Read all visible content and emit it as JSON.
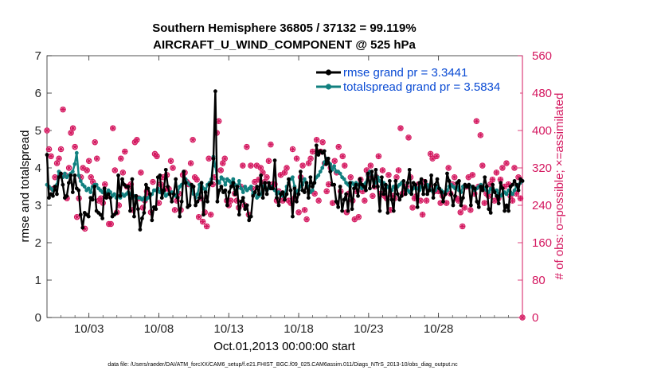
{
  "chart_data": {
    "type": "line",
    "title": "Southern Hemisphere 36805 / 37132 = 99.119%",
    "subtitle": "AIRCRAFT_U_WIND_COMPONENT @ 525 hPa",
    "xlabel": "Oct.01,2013 00:00:00 start",
    "ylabel": "rmse and totalspread",
    "y2label": "# of obs: o=possible; ×=assimilated",
    "xlim": [
      0,
      34
    ],
    "ylim": [
      0,
      7
    ],
    "y2lim": [
      0,
      560
    ],
    "x_ticks": [
      {
        "label": "10/03",
        "value": 3
      },
      {
        "label": "10/08",
        "value": 8
      },
      {
        "label": "10/13",
        "value": 13
      },
      {
        "label": "10/18",
        "value": 18
      },
      {
        "label": "10/23",
        "value": 23
      },
      {
        "label": "10/28",
        "value": 28
      }
    ],
    "y_ticks": [
      {
        "label": "0",
        "value": 0
      },
      {
        "label": "1",
        "value": 1
      },
      {
        "label": "2",
        "value": 2
      },
      {
        "label": "3",
        "value": 3
      },
      {
        "label": "4",
        "value": 4
      },
      {
        "label": "5",
        "value": 5
      },
      {
        "label": "6",
        "value": 6
      },
      {
        "label": "7",
        "value": 7
      }
    ],
    "y2_ticks": [
      {
        "label": "0",
        "value": 0
      },
      {
        "label": "80",
        "value": 80
      },
      {
        "label": "160",
        "value": 160
      },
      {
        "label": "240",
        "value": 240
      },
      {
        "label": "320",
        "value": 320
      },
      {
        "label": "400",
        "value": 400
      },
      {
        "label": "480",
        "value": 480
      },
      {
        "label": "560",
        "value": 560
      }
    ],
    "series": [
      {
        "name": "rmse",
        "legend": "rmse grand pr = 3.3441",
        "color": "#000000",
        "y": [
          4.35,
          3.2,
          3.3,
          3.25,
          3.5,
          3.3,
          3.75,
          3.85,
          3.55,
          3.2,
          3.25,
          3.6,
          3.8,
          3.35,
          3.8,
          3.45,
          3.4,
          2.75,
          2.4,
          2.8,
          2.75,
          2.7,
          3.2,
          3.15,
          3.5,
          2.85,
          2.8,
          2.75,
          2.65,
          3.45,
          3.2,
          3.3,
          3.2,
          2.7,
          2.75,
          2.8,
          3.8,
          3.25,
          3.7,
          3.55,
          3.5,
          3.5,
          2.85,
          3.7,
          2.7,
          3.25,
          2.9,
          2.35,
          2.65,
          2.8,
          3.55,
          3.45,
          3.3,
          2.6,
          2.95,
          2.9,
          3.75,
          3.8,
          3.2,
          3.4,
          3.95,
          3.5,
          3.3,
          3.1,
          3.3,
          3.7,
          3.2,
          2.7,
          3.1,
          3.9,
          3.6,
          2.95,
          3.0,
          3.55,
          3.5,
          3.0,
          3.1,
          3.2,
          3.6,
          2.75,
          3.35,
          3.1,
          3.55,
          3.6,
          4.25,
          6.05,
          3.1,
          3.4,
          3.5,
          3.35,
          3.4,
          3.0,
          3.35,
          3.5,
          3.6,
          3.3,
          3.5,
          2.75,
          3.1,
          3.2,
          2.9,
          3.0,
          2.6,
          2.7,
          3.25,
          3.35,
          3.5,
          3.3,
          3.8,
          3.2,
          3.6,
          3.3,
          3.6,
          3.45,
          3.45,
          4.2,
          3.2,
          3.0,
          3.3,
          3.35,
          3.15,
          3.3,
          3.7,
          3.4,
          2.7,
          3.45,
          3.1,
          3.3,
          3.9,
          3.4,
          3.35,
          3.6,
          3.2,
          3.75,
          3.5,
          3.6,
          4.6,
          4.35,
          4.45,
          4.4,
          4.45,
          4.1,
          4.25,
          3.9,
          3.55,
          3.55,
          3.1,
          2.95,
          3.5,
          2.85,
          3.15,
          3.3,
          2.85,
          3.6,
          2.9,
          3.45,
          3.55,
          3.25,
          3.7,
          3.55,
          3.5,
          3.4,
          3.85,
          3.45,
          3.9,
          3.5,
          3.95,
          3.5,
          2.85,
          3.75,
          3.3,
          3.55,
          2.8,
          3.65,
          3.15,
          2.85,
          3.65,
          3.3,
          3.15,
          3.25,
          3.65,
          3.3,
          3.6,
          3.95,
          3.3,
          3.6,
          3.55,
          2.95,
          3.6,
          3.7,
          3.3,
          3.65,
          3.3,
          3.4,
          3.8,
          3.2,
          3.55,
          3.7,
          3.45,
          3.35,
          3.1,
          3.3,
          3.85,
          3.65,
          3.3,
          3.0,
          3.25,
          3.6,
          3.65,
          3.0,
          3.2,
          3.55,
          3.5,
          3.55,
          3.0,
          3.5,
          3.45,
          3.1,
          2.95,
          3.5,
          3.4,
          3.75,
          3.5,
          2.9,
          2.8,
          3.55,
          3.35,
          3.25,
          3.05,
          3.6,
          3.45,
          2.85,
          3.0,
          2.85,
          3.5,
          3.55,
          3.65,
          3.55,
          3.4,
          3.7,
          3.65
        ]
      },
      {
        "name": "totalspread",
        "legend": "totalspread grand pr = 3.5834",
        "color": "#11807f",
        "y": [
          3.55,
          3.5,
          3.45,
          3.4,
          3.5,
          3.55,
          3.9,
          3.85,
          3.75,
          3.85,
          3.75,
          3.8,
          3.85,
          3.9,
          4.1,
          4.4,
          3.8,
          3.65,
          3.55,
          3.5,
          3.4,
          3.45,
          3.35,
          3.5,
          3.55,
          3.55,
          3.45,
          3.4,
          3.35,
          3.45,
          3.3,
          3.4,
          3.35,
          3.25,
          3.3,
          3.2,
          3.25,
          3.2,
          3.3,
          3.25,
          3.3,
          3.35,
          3.3,
          3.2,
          3.25,
          3.2,
          3.2,
          3.2,
          3.15,
          3.2,
          3.15,
          3.2,
          3.25,
          3.3,
          3.4,
          3.4,
          3.45,
          3.35,
          3.4,
          3.35,
          3.25,
          3.3,
          3.3,
          3.35,
          3.3,
          3.25,
          3.35,
          3.5,
          3.55,
          3.6,
          3.7,
          3.6,
          3.55,
          3.45,
          3.3,
          3.2,
          3.3,
          3.55,
          3.6,
          3.45,
          3.4,
          3.55,
          3.6,
          3.7,
          4.3,
          4.05,
          3.65,
          3.6,
          3.75,
          3.7,
          3.55,
          3.7,
          3.65,
          3.6,
          3.7,
          3.55,
          3.45,
          3.65,
          3.45,
          3.35,
          3.5,
          3.4,
          3.45,
          3.5,
          3.3,
          3.35,
          3.2,
          3.25,
          3.3,
          3.5,
          3.6,
          3.4,
          3.45,
          3.5,
          3.45,
          3.4,
          3.3,
          3.35,
          3.3,
          3.25,
          3.3,
          3.5,
          3.6,
          3.7,
          3.75,
          3.5,
          3.35,
          3.4,
          3.5,
          3.55,
          3.7,
          3.6,
          3.5,
          3.35,
          3.4,
          3.6,
          3.75,
          3.8,
          3.9,
          4.0,
          4.15,
          4.25,
          4.15,
          4.1,
          3.95,
          4.05,
          3.9,
          3.9,
          3.85,
          3.75,
          3.7,
          3.6,
          3.55,
          3.5,
          3.6,
          3.55,
          3.6,
          3.55,
          3.5,
          3.45,
          3.55,
          3.6,
          3.8,
          3.9,
          3.8,
          3.65,
          3.6,
          3.75,
          3.65,
          3.55,
          3.6,
          3.45,
          3.5,
          3.45,
          3.4,
          3.5,
          3.45,
          3.5,
          3.55,
          3.6,
          3.5,
          3.45,
          3.4,
          3.35,
          3.4,
          3.45,
          3.5,
          3.45,
          3.4,
          3.5,
          3.45,
          3.5,
          3.55,
          3.45,
          3.4,
          3.35,
          3.4,
          3.5,
          3.45,
          3.4,
          3.35,
          3.3,
          3.4,
          3.5,
          3.55,
          3.5,
          3.45,
          3.5,
          3.4,
          3.35,
          3.5,
          3.55,
          3.5,
          3.55,
          3.5,
          3.45,
          3.4,
          3.45,
          3.5,
          3.55,
          3.5,
          3.45,
          3.4,
          3.35,
          3.45,
          3.4,
          3.35,
          3.4,
          3.3,
          3.25,
          3.3,
          3.35,
          3.3,
          3.4,
          3.35,
          3.3,
          3.4,
          3.5,
          3.55,
          3.6,
          3.65
        ]
      }
    ],
    "obs": {
      "color": "#d4175f",
      "possible_counts": [
        400,
        360,
        345,
        275,
        300,
        330,
        340,
        360,
        445,
        305,
        255,
        320,
        395,
        405,
        365,
        215,
        255,
        300,
        320,
        190,
        315,
        335,
        300,
        290,
        375,
        340,
        250,
        255,
        245,
        285,
        260,
        200,
        200,
        405,
        315,
        225,
        240,
        340,
        310,
        355,
        280,
        280,
        285,
        230,
        375,
        380,
        255,
        310,
        235,
        250,
        270,
        260,
        225,
        290,
        350,
        345,
        245,
        285,
        300,
        275,
        305,
        275,
        335,
        320,
        230,
        250,
        265,
        230,
        305,
        310,
        290,
        285,
        330,
        380,
        300,
        295,
        215,
        255,
        205,
        225,
        195,
        340,
        220,
        285,
        300,
        395,
        420,
        315,
        330,
        340,
        250,
        240,
        250,
        285,
        265,
        250,
        235,
        280,
        325,
        240,
        365,
        220,
        325,
        275,
        290,
        325,
        295,
        320,
        310,
        290,
        300,
        335,
        370,
        285,
        285,
        250,
        270,
        305,
        250,
        310,
        320,
        250,
        245,
        360,
        255,
        340,
        225,
        300,
        325,
        230,
        210,
        330,
        340,
        355,
        265,
        380,
        250,
        355,
        375,
        330,
        270,
        285,
        320,
        245,
        335,
        310,
        365,
        270,
        345,
        325,
        225,
        265,
        300,
        250,
        210,
        270,
        215,
        295,
        270,
        250,
        315,
        305,
        325,
        260,
        280,
        300,
        345,
        265,
        315,
        260,
        255,
        305,
        230,
        260,
        255,
        300,
        315,
        405,
        265,
        270,
        280,
        385,
        300,
        235,
        255,
        260,
        285,
        250,
        220,
        290,
        250,
        280,
        350,
        340,
        270,
        345,
        270,
        245,
        260,
        265,
        245,
        320,
        265,
        285,
        300,
        255,
        250,
        225,
        195,
        235,
        280,
        300,
        230,
        305,
        265,
        420,
        280,
        390,
        325,
        245,
        265,
        260,
        285,
        295,
        250,
        310,
        255,
        295,
        320,
        280,
        330,
        285,
        260,
        250,
        320,
        265,
        300,
        255,
        0
      ]
    },
    "footer": "data file: /Users/raeder/DAI/ATM_forcXX/CAM6_setup/f.e21.FHIST_BGC.f09_025.CAM6assim.011/Diags_NTrS_2013-10/obs_diag_output.nc"
  }
}
